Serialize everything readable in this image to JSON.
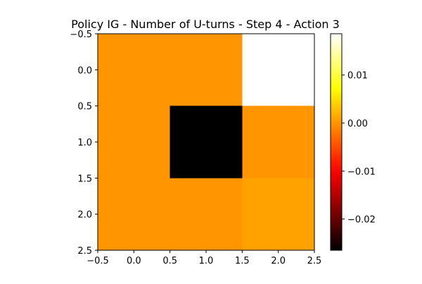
{
  "chart_data": {
    "type": "heatmap",
    "title": "Policy IG - Number of U-turns - Step 4 - Action 3",
    "xlabel": "",
    "ylabel": "",
    "colormap": "hot",
    "grid": false,
    "values": [
      [
        0.0,
        0.0,
        0.0186
      ],
      [
        0.0,
        -0.0265,
        0.0
      ],
      [
        0.0,
        0.0,
        0.0009
      ]
    ],
    "xlim": [
      -0.5,
      2.5
    ],
    "ylim": [
      2.5,
      -0.5
    ],
    "xticks": [
      -0.5,
      0.0,
      0.5,
      1.0,
      1.5,
      2.0,
      2.5
    ],
    "xtick_labels": [
      "−0.5",
      "0.0",
      "0.5",
      "1.0",
      "1.5",
      "2.0",
      "2.5"
    ],
    "yticks": [
      -0.5,
      0.0,
      0.5,
      1.0,
      1.5,
      2.0,
      2.5
    ],
    "ytick_labels": [
      "−0.5",
      "0.0",
      "0.5",
      "1.0",
      "1.5",
      "2.0",
      "2.5"
    ],
    "colorbar": {
      "vmin": -0.0265,
      "vmax": 0.0186,
      "ticks": [
        -0.02,
        -0.01,
        0.0,
        0.01
      ],
      "tick_labels": [
        "−0.02",
        "−0.01",
        "0.00",
        "0.01"
      ]
    }
  }
}
